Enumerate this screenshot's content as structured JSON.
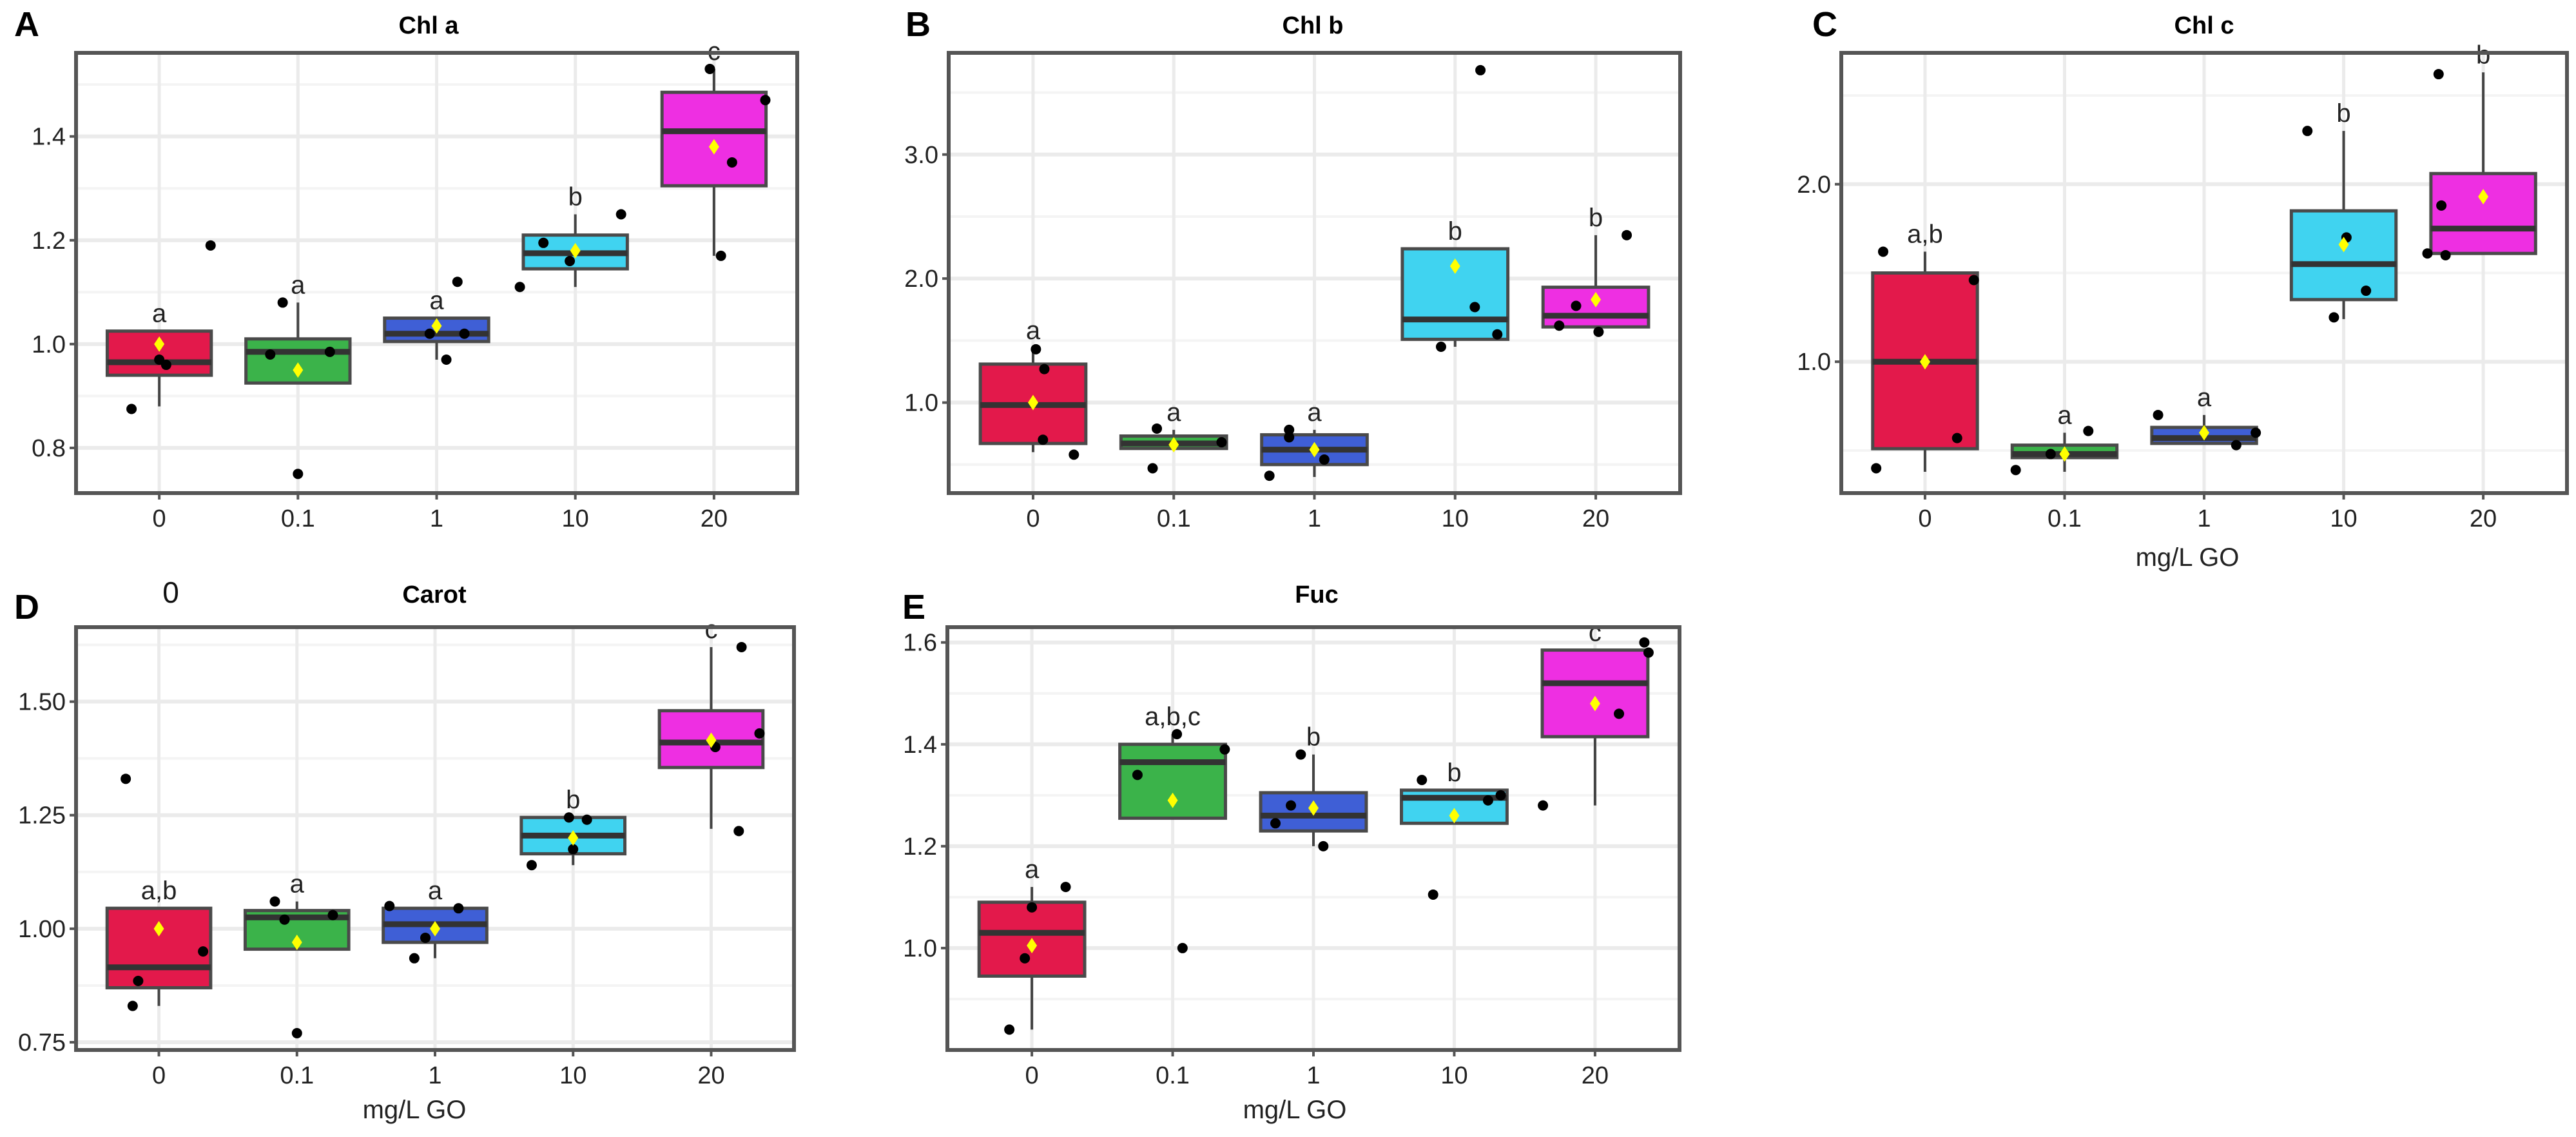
{
  "chart_data": [
    {
      "type": "box",
      "panel": "A",
      "title": "Chl a",
      "xlabel": "",
      "ylabel": "",
      "categories": [
        "0",
        "0.1",
        "1",
        "10",
        "20"
      ],
      "ylim": [
        0.713,
        1.561
      ],
      "yticks": [
        0.8,
        1.0,
        1.2,
        1.4
      ],
      "ytick_labels": [
        "0.8",
        "1.0",
        "1.2",
        "1.4"
      ],
      "grid": true,
      "boxes": [
        {
          "q1": 0.94,
          "median": 0.965,
          "q3": 1.025,
          "lo": 0.88,
          "hi": 1.025,
          "mean": 1.0,
          "letter": "a",
          "points": [
            [
              -0.2,
              0.875
            ],
            [
              0,
              0.97
            ],
            [
              0.05,
              0.96
            ],
            [
              0.37,
              1.19
            ]
          ]
        },
        {
          "q1": 0.925,
          "median": 0.985,
          "q3": 1.01,
          "lo": 0.925,
          "hi": 1.08,
          "mean": 0.95,
          "letter": "a",
          "points": [
            [
              -0.2,
              0.98
            ],
            [
              0.23,
              0.985
            ],
            [
              -0.11,
              1.08
            ],
            [
              0,
              0.75
            ]
          ]
        },
        {
          "q1": 1.005,
          "median": 1.02,
          "q3": 1.05,
          "lo": 0.97,
          "hi": 1.05,
          "mean": 1.035,
          "letter": "a",
          "points": [
            [
              -0.05,
              1.02
            ],
            [
              0.2,
              1.02
            ],
            [
              0.07,
              0.97
            ],
            [
              0.15,
              1.12
            ]
          ]
        },
        {
          "q1": 1.145,
          "median": 1.175,
          "q3": 1.21,
          "lo": 1.11,
          "hi": 1.25,
          "mean": 1.18,
          "letter": "b",
          "points": [
            [
              -0.4,
              1.11
            ],
            [
              -0.23,
              1.195
            ],
            [
              -0.04,
              1.16
            ],
            [
              0.33,
              1.25
            ]
          ]
        },
        {
          "q1": 1.305,
          "median": 1.41,
          "q3": 1.485,
          "lo": 1.17,
          "hi": 1.53,
          "mean": 1.38,
          "letter": "c",
          "points": [
            [
              -0.03,
              1.53
            ],
            [
              0.37,
              1.47
            ],
            [
              0.13,
              1.35
            ],
            [
              0.05,
              1.17
            ]
          ]
        }
      ]
    },
    {
      "type": "box",
      "panel": "B",
      "title": "Chl b",
      "xlabel": "",
      "ylabel": "",
      "categories": [
        "0",
        "0.1",
        "1",
        "10",
        "20"
      ],
      "ylim": [
        0.27,
        3.82
      ],
      "yticks": [
        1.0,
        2.0,
        3.0
      ],
      "ytick_labels": [
        "1.0",
        "2.0",
        "3.0"
      ],
      "grid": true,
      "boxes": [
        {
          "q1": 0.67,
          "median": 0.98,
          "q3": 1.31,
          "lo": 0.6,
          "hi": 1.44,
          "mean": 1.0,
          "letter": "a",
          "points": [
            [
              0.02,
              1.43
            ],
            [
              0.08,
              1.27
            ],
            [
              0.07,
              0.7
            ],
            [
              0.29,
              0.58
            ]
          ]
        },
        {
          "q1": 0.63,
          "median": 0.67,
          "q3": 0.73,
          "lo": 0.63,
          "hi": 0.78,
          "mean": 0.66,
          "letter": "a",
          "points": [
            [
              -0.12,
              0.79
            ],
            [
              0.34,
              0.68
            ],
            [
              -0.15,
              0.47
            ]
          ]
        },
        {
          "q1": 0.5,
          "median": 0.62,
          "q3": 0.74,
          "lo": 0.4,
          "hi": 0.78,
          "mean": 0.62,
          "letter": "a",
          "points": [
            [
              -0.32,
              0.41
            ],
            [
              -0.18,
              0.72
            ],
            [
              -0.18,
              0.78
            ],
            [
              0.07,
              0.54
            ]
          ]
        },
        {
          "q1": 1.51,
          "median": 1.67,
          "q3": 2.24,
          "lo": 1.45,
          "hi": 2.24,
          "mean": 2.1,
          "letter": "b",
          "points": [
            [
              -0.1,
              1.45
            ],
            [
              0.14,
              1.77
            ],
            [
              0.3,
              1.55
            ],
            [
              0.18,
              3.68
            ]
          ]
        },
        {
          "q1": 1.61,
          "median": 1.7,
          "q3": 1.93,
          "lo": 1.58,
          "hi": 2.35,
          "mean": 1.83,
          "letter": "b",
          "points": [
            [
              -0.26,
              1.62
            ],
            [
              -0.14,
              1.78
            ],
            [
              0.02,
              1.57
            ],
            [
              0.22,
              2.35
            ]
          ]
        }
      ]
    },
    {
      "type": "box",
      "panel": "C",
      "title": "Chl c",
      "xlabel": "mg/L GO",
      "ylabel": "",
      "categories": [
        "0",
        "0.1",
        "1",
        "10",
        "20"
      ],
      "ylim": [
        0.26,
        2.74
      ],
      "yticks": [
        1.0,
        2.0
      ],
      "ytick_labels": [
        "1.0",
        "2.0"
      ],
      "grid": true,
      "boxes": [
        {
          "q1": 0.51,
          "median": 1.0,
          "q3": 1.5,
          "lo": 0.38,
          "hi": 1.62,
          "mean": 1.0,
          "letter": "a,b",
          "points": [
            [
              -0.35,
              0.4
            ],
            [
              -0.3,
              1.62
            ],
            [
              0.35,
              1.46
            ],
            [
              0.23,
              0.57
            ]
          ]
        },
        {
          "q1": 0.46,
          "median": 0.48,
          "q3": 0.53,
          "lo": 0.38,
          "hi": 0.6,
          "mean": 0.48,
          "letter": "a",
          "points": [
            [
              -0.35,
              0.39
            ],
            [
              -0.1,
              0.48
            ],
            [
              0.17,
              0.61
            ]
          ]
        },
        {
          "q1": 0.54,
          "median": 0.57,
          "q3": 0.63,
          "lo": 0.54,
          "hi": 0.7,
          "mean": 0.6,
          "letter": "a",
          "points": [
            [
              -0.33,
              0.7
            ],
            [
              0.23,
              0.53
            ],
            [
              0.37,
              0.6
            ]
          ]
        },
        {
          "q1": 1.35,
          "median": 1.55,
          "q3": 1.85,
          "lo": 1.24,
          "hi": 2.3,
          "mean": 1.66,
          "letter": "b",
          "points": [
            [
              -0.26,
              2.3
            ],
            [
              -0.07,
              1.25
            ],
            [
              0.02,
              1.7
            ],
            [
              0.16,
              1.4
            ]
          ]
        },
        {
          "q1": 1.61,
          "median": 1.75,
          "q3": 2.06,
          "lo": 1.61,
          "hi": 2.63,
          "mean": 1.93,
          "letter": "b",
          "points": [
            [
              -0.32,
              2.62
            ],
            [
              -0.3,
              1.88
            ],
            [
              -0.4,
              1.61
            ],
            [
              -0.27,
              1.6
            ]
          ]
        }
      ]
    },
    {
      "type": "box",
      "panel": "D",
      "title": "Carot",
      "xlabel": "mg/L GO",
      "ylabel": "",
      "categories": [
        "0",
        "0.1",
        "1",
        "10",
        "20"
      ],
      "ylim": [
        0.733,
        1.664
      ],
      "yticks": [
        0.75,
        1.0,
        1.25,
        1.5
      ],
      "ytick_labels": [
        "0.75",
        "1.00",
        "1.25",
        "1.50"
      ],
      "grid": true,
      "annotation": "0",
      "boxes": [
        {
          "q1": 0.87,
          "median": 0.915,
          "q3": 1.045,
          "lo": 0.83,
          "hi": 1.045,
          "mean": 1.0,
          "letter": "a,b",
          "points": [
            [
              -0.24,
              1.33
            ],
            [
              -0.15,
              0.885
            ],
            [
              -0.19,
              0.83
            ],
            [
              0.32,
              0.95
            ]
          ]
        },
        {
          "q1": 0.955,
          "median": 1.025,
          "q3": 1.04,
          "lo": 0.955,
          "hi": 1.06,
          "mean": 0.97,
          "letter": "a",
          "points": [
            [
              -0.16,
              1.06
            ],
            [
              -0.09,
              1.02
            ],
            [
              0.26,
              1.03
            ],
            [
              0,
              0.77
            ]
          ]
        },
        {
          "q1": 0.97,
          "median": 1.01,
          "q3": 1.045,
          "lo": 0.935,
          "hi": 1.045,
          "mean": 1.0,
          "letter": "a",
          "points": [
            [
              -0.33,
              1.05
            ],
            [
              0.17,
              1.045
            ],
            [
              -0.07,
              0.98
            ],
            [
              -0.15,
              0.935
            ]
          ]
        },
        {
          "q1": 1.165,
          "median": 1.205,
          "q3": 1.245,
          "lo": 1.14,
          "hi": 1.245,
          "mean": 1.2,
          "letter": "b",
          "points": [
            [
              -0.3,
              1.14
            ],
            [
              -0.03,
              1.245
            ],
            [
              0.1,
              1.24
            ],
            [
              0,
              1.175
            ]
          ]
        },
        {
          "q1": 1.355,
          "median": 1.41,
          "q3": 1.48,
          "lo": 1.22,
          "hi": 1.62,
          "mean": 1.415,
          "letter": "c",
          "points": [
            [
              0.22,
              1.62
            ],
            [
              0.35,
              1.43
            ],
            [
              0.03,
              1.4
            ],
            [
              0.2,
              1.215
            ]
          ]
        }
      ]
    },
    {
      "type": "box",
      "panel": "E",
      "title": "Fuc",
      "xlabel": "mg/L GO",
      "ylabel": "",
      "categories": [
        "0",
        "0.1",
        "1",
        "10",
        "20"
      ],
      "ylim": [
        0.8,
        1.63
      ],
      "yticks": [
        1.0,
        1.2,
        1.4,
        1.6
      ],
      "ytick_labels": [
        "1.0",
        "1.2",
        "1.4",
        "1.6"
      ],
      "grid": true,
      "boxes": [
        {
          "q1": 0.945,
          "median": 1.03,
          "q3": 1.09,
          "lo": 0.84,
          "hi": 1.12,
          "mean": 1.005,
          "letter": "a",
          "points": [
            [
              -0.16,
              0.84
            ],
            [
              -0.05,
              0.98
            ],
            [
              0,
              1.08
            ],
            [
              0.24,
              1.12
            ]
          ]
        },
        {
          "q1": 1.255,
          "median": 1.365,
          "q3": 1.4,
          "lo": 1.255,
          "hi": 1.42,
          "mean": 1.29,
          "letter": "a,b,c",
          "points": [
            [
              -0.25,
              1.34
            ],
            [
              0.03,
              1.42
            ],
            [
              0.37,
              1.39
            ],
            [
              0.07,
              1.0
            ]
          ]
        },
        {
          "q1": 1.23,
          "median": 1.26,
          "q3": 1.305,
          "lo": 1.2,
          "hi": 1.38,
          "mean": 1.275,
          "letter": "b",
          "points": [
            [
              -0.27,
              1.245
            ],
            [
              -0.16,
              1.28
            ],
            [
              -0.09,
              1.38
            ],
            [
              0.07,
              1.2
            ]
          ]
        },
        {
          "q1": 1.245,
          "median": 1.295,
          "q3": 1.31,
          "lo": 1.245,
          "hi": 1.31,
          "mean": 1.26,
          "letter": "b",
          "points": [
            [
              -0.23,
              1.33
            ],
            [
              -0.15,
              1.105
            ],
            [
              0.24,
              1.29
            ],
            [
              0.33,
              1.3
            ]
          ]
        },
        {
          "q1": 1.415,
          "median": 1.52,
          "q3": 1.585,
          "lo": 1.28,
          "hi": 1.585,
          "mean": 1.48,
          "letter": "c",
          "points": [
            [
              -0.37,
              1.28
            ],
            [
              0.17,
              1.46
            ],
            [
              0.35,
              1.6
            ],
            [
              0.38,
              1.58
            ]
          ]
        }
      ]
    }
  ],
  "colors": {
    "groups": [
      "#e3194b",
      "#3bb34a",
      "#3f5fd6",
      "#40d3f0",
      "#ee2fe2"
    ],
    "mean_marker": "#ffff00",
    "point": "#000000",
    "frame": "#555555",
    "grid": "#ebebeb"
  }
}
